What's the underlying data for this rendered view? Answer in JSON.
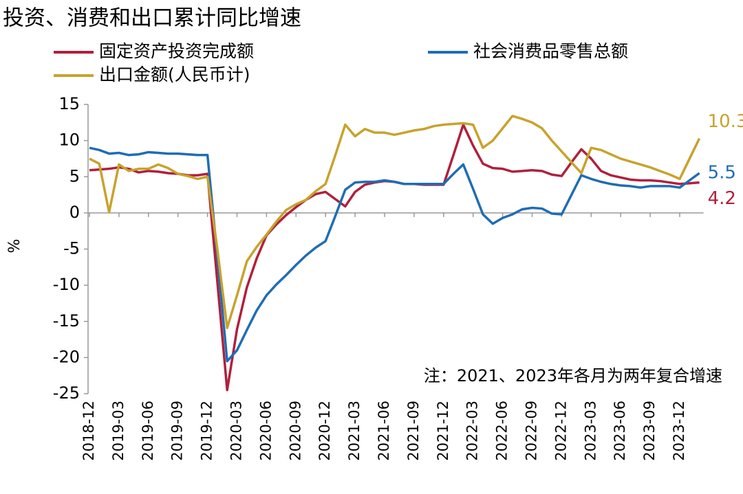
{
  "chart_data": {
    "type": "line",
    "title": "投资、消费和出口累计同比增速",
    "y_label": "%",
    "annotation": "注：2021、2023年各月为两年复合增速",
    "categories": [
      "2018-12",
      null,
      null,
      "2019-03",
      null,
      null,
      "2019-06",
      null,
      null,
      "2019-09",
      null,
      null,
      "2019-12",
      null,
      null,
      "2020-03",
      null,
      null,
      "2020-06",
      null,
      null,
      "2020-09",
      null,
      null,
      "2020-12",
      null,
      null,
      "2021-03",
      null,
      null,
      "2021-06",
      null,
      null,
      "2021-09",
      null,
      null,
      "2021-12",
      null,
      null,
      "2022-03",
      null,
      null,
      "2022-06",
      null,
      null,
      "2022-09",
      null,
      null,
      "2022-12",
      null,
      null,
      "2023-03",
      null,
      null,
      "2023-06",
      null,
      null,
      "2023-09",
      null,
      null,
      "2023-12",
      null,
      null
    ],
    "series": [
      {
        "name": "固定资产投资完成额",
        "color": "#b0203c",
        "values": [
          5.9,
          6.0,
          6.1,
          6.3,
          6.1,
          5.6,
          5.8,
          5.7,
          5.5,
          5.4,
          5.2,
          5.2,
          5.4,
          -9.5,
          -24.5,
          -16.1,
          -10.3,
          -6.3,
          -3.1,
          -1.6,
          -0.3,
          0.8,
          1.8,
          2.6,
          2.9,
          1.9,
          0.9,
          2.9,
          3.9,
          4.2,
          4.4,
          4.3,
          4.0,
          4.0,
          3.9,
          3.9,
          3.9,
          8.0,
          12.2,
          9.3,
          6.8,
          6.2,
          6.1,
          5.7,
          5.8,
          5.9,
          5.8,
          5.3,
          5.1,
          7.0,
          8.8,
          7.5,
          5.8,
          5.2,
          4.9,
          4.6,
          4.5,
          4.5,
          4.4,
          4.2,
          4.0,
          4.1,
          4.2
        ]
      },
      {
        "name": "社会消费品零售总额",
        "color": "#1f6db3",
        "values": [
          9.0,
          8.7,
          8.2,
          8.3,
          8.0,
          8.1,
          8.4,
          8.3,
          8.2,
          8.2,
          8.1,
          8.0,
          8.0,
          -6.0,
          -20.5,
          -19.0,
          -16.2,
          -13.5,
          -11.4,
          -9.9,
          -8.6,
          -7.2,
          -5.9,
          -4.8,
          -3.9,
          -0.4,
          3.2,
          4.2,
          4.3,
          4.3,
          4.5,
          4.3,
          4.0,
          4.0,
          4.0,
          4.0,
          4.0,
          5.4,
          6.7,
          3.3,
          -0.2,
          -1.5,
          -0.7,
          -0.2,
          0.5,
          0.7,
          0.6,
          -0.1,
          -0.2,
          2.5,
          5.2,
          4.7,
          4.3,
          4.0,
          3.8,
          3.7,
          3.5,
          3.7,
          3.7,
          3.7,
          3.5,
          4.5,
          5.5
        ]
      },
      {
        "name": "出口金额(人民币计)",
        "color": "#c8a22c",
        "values": [
          7.5,
          6.8,
          0.1,
          6.7,
          5.8,
          6.1,
          6.1,
          6.7,
          6.2,
          5.4,
          5.1,
          4.7,
          5.0,
          -5.0,
          -15.9,
          -11.4,
          -6.7,
          -4.7,
          -3.0,
          -1.2,
          0.4,
          1.2,
          1.8,
          3.0,
          4.0,
          8.0,
          12.2,
          10.6,
          11.6,
          11.1,
          11.1,
          10.8,
          11.1,
          11.4,
          11.6,
          12.0,
          12.2,
          12.3,
          12.4,
          12.2,
          9.0,
          10.0,
          11.7,
          13.4,
          13.0,
          12.5,
          11.7,
          10.0,
          8.5,
          7.0,
          5.5,
          9.0,
          8.7,
          8.1,
          7.5,
          7.1,
          6.7,
          6.3,
          5.8,
          5.3,
          4.7,
          7.5,
          10.3
        ]
      }
    ],
    "ylim": [
      -25,
      15
    ],
    "yticks": [
      -25,
      -20,
      -15,
      -10,
      -5,
      0,
      5,
      10,
      15
    ]
  }
}
